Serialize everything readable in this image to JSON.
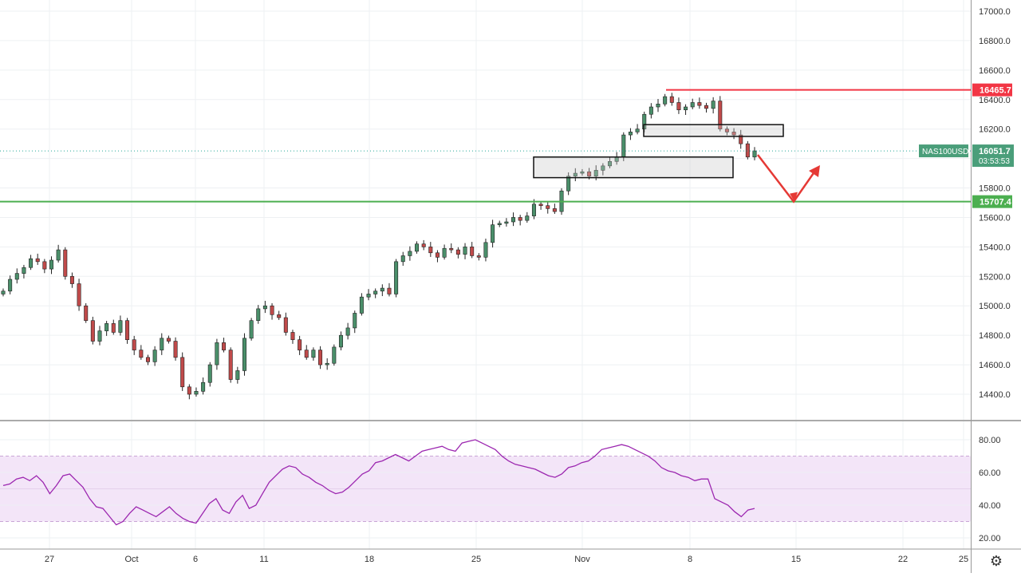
{
  "chart_data": [
    {
      "type": "candlestick",
      "symbol": "NAS100USD",
      "last_price": "16051.7",
      "countdown": "03:53:53",
      "ylim": [
        14300,
        17050
      ],
      "y_ticks": [
        "17000.0",
        "16800.0",
        "16600.0",
        "16400.0",
        "16200.0",
        "15800.0",
        "15600.0",
        "15400.0",
        "15200.0",
        "15000.0",
        "14800.0",
        "14600.0",
        "14400.0"
      ],
      "x_ticks": [
        "27",
        "Oct",
        "6",
        "11",
        "18",
        "25",
        "Nov",
        "8",
        "15",
        "22",
        "25"
      ],
      "levels": [
        {
          "name": "resistance",
          "value": 16465.7,
          "label": "16465.7",
          "color": "#f23645"
        },
        {
          "name": "support",
          "value": 15707.4,
          "label": "15707.4",
          "color": "#4caf50"
        }
      ],
      "annotations": [
        {
          "name": "upper-zone",
          "y_low": 16150,
          "y_high": 16230
        },
        {
          "name": "lower-zone",
          "y_low": 15870,
          "y_high": 16010
        }
      ],
      "projection_note": "red zigzag arrow down to 15707.4 then up",
      "price_path": [
        15100,
        15180,
        15220,
        15260,
        15320,
        15300,
        15250,
        15310,
        15380,
        15200,
        15150,
        15000,
        14900,
        14760,
        14830,
        14880,
        14820,
        14900,
        14770,
        14700,
        14650,
        14620,
        14700,
        14780,
        14760,
        14650,
        14450,
        14400,
        14420,
        14480,
        14600,
        14750,
        14700,
        14500,
        14560,
        14780,
        14900,
        14980,
        15000,
        14940,
        14920,
        14820,
        14770,
        14700,
        14650,
        14700,
        14600,
        14610,
        14720,
        14800,
        14850,
        14950,
        15060,
        15080,
        15100,
        15120,
        15080,
        15300,
        15340,
        15370,
        15420,
        15400,
        15360,
        15330,
        15390,
        15380,
        15350,
        15400,
        15340,
        15330,
        15430,
        15550,
        15560,
        15570,
        15600,
        15580,
        15610,
        15690,
        15680,
        15660,
        15640,
        15780,
        15880,
        15900,
        15910,
        15880,
        15920,
        15950,
        15980,
        16010,
        16160,
        16180,
        16200,
        16300,
        16350,
        16370,
        16420,
        16380,
        16330,
        16350,
        16380,
        16360,
        16340,
        16390,
        16200,
        16180,
        16160,
        16100,
        16010,
        16051.7
      ]
    },
    {
      "type": "line",
      "indicator": "RSI",
      "ylim": [
        14,
        92
      ],
      "band": [
        30,
        70
      ],
      "y_ticks": [
        "80.00",
        "60.00",
        "40.00",
        "20.00"
      ],
      "values": [
        52,
        53,
        56,
        57,
        55,
        58,
        54,
        47,
        52,
        58,
        59,
        55,
        51,
        44,
        39,
        38,
        33,
        28,
        30,
        35,
        39,
        37,
        35,
        33,
        36,
        39,
        35,
        32,
        30,
        29,
        35,
        41,
        44,
        37,
        35,
        42,
        46,
        38,
        40,
        47,
        54,
        58,
        62,
        64,
        63,
        59,
        57,
        54,
        52,
        49,
        47,
        48,
        51,
        55,
        59,
        61,
        66,
        67,
        69,
        71,
        69,
        67,
        70,
        73,
        74,
        75,
        76,
        74,
        73,
        78,
        79,
        80,
        78,
        76,
        74,
        70,
        67,
        65,
        64,
        63,
        62,
        60,
        58,
        57,
        59,
        63,
        64,
        66,
        67,
        70,
        74,
        75,
        76,
        77,
        76,
        74,
        72,
        70,
        67,
        63,
        61,
        60,
        58,
        57,
        55,
        56,
        56,
        44,
        42,
        40,
        36,
        33,
        37,
        38
      ]
    }
  ],
  "settings": {
    "icon": "gear-icon",
    "glyph": "⚙"
  },
  "colors": {
    "up": "#26a69a",
    "up_body": "#4a8f6a",
    "down": "#ef5350",
    "down_body": "#c04a4a",
    "rsi_line": "#9c27b0",
    "rsi_band": "#f3e5f8",
    "grid": "#eef0f3"
  }
}
